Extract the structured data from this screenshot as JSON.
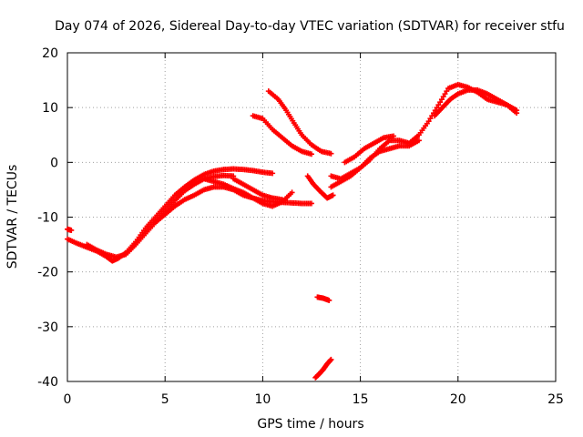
{
  "chart_data": {
    "type": "scatter",
    "title": "Day 074 of 2026, Sidereal Day-to-day VTEC variation (SDTVAR) for receiver stfu",
    "xlabel": "GPS time / hours",
    "ylabel": "SDTVAR / TECUs",
    "xlim": [
      0,
      25
    ],
    "ylim": [
      -40,
      20
    ],
    "xticks": [
      "0",
      "5",
      "10",
      "15",
      "20",
      "25"
    ],
    "yticks": [
      "20",
      "10",
      "0",
      "-10",
      "-20",
      "-30",
      "-40"
    ],
    "grid": true,
    "marker": "+",
    "color": "#ff0000",
    "series": [
      {
        "name": "track-main-1",
        "x": [
          0.0,
          0.5,
          1.0,
          1.5,
          2.0,
          2.3,
          2.6,
          3.0,
          3.5,
          4.0,
          4.5,
          5.0,
          5.5,
          6.0,
          6.5,
          7.0,
          7.5,
          8.0,
          8.5,
          9.0,
          9.5,
          10.0,
          10.5
        ],
        "y": [
          -14,
          -14.8,
          -15.5,
          -16.2,
          -17.2,
          -18,
          -17.5,
          -16.5,
          -14.5,
          -12,
          -10,
          -8,
          -6,
          -4.5,
          -3.2,
          -2.2,
          -1.6,
          -1.3,
          -1.2,
          -1.3,
          -1.5,
          -1.8,
          -2.0
        ]
      },
      {
        "name": "track-main-2",
        "x": [
          1.0,
          1.5,
          2.0,
          2.5,
          3.0,
          3.5,
          4.0,
          4.5,
          5.0,
          5.5,
          6.0,
          6.5,
          7.0,
          7.5,
          8.0,
          8.5
        ],
        "y": [
          -15,
          -16,
          -16.8,
          -17.3,
          -16.8,
          -15,
          -13,
          -11,
          -9,
          -7,
          -5.2,
          -4,
          -3,
          -2.6,
          -2.4,
          -2.5
        ]
      },
      {
        "name": "track-lower-1",
        "x": [
          4.5,
          5.0,
          5.5,
          6.0,
          6.5,
          7.0,
          7.5,
          8.0,
          8.5,
          9.0,
          9.5,
          10.0,
          10.5,
          11.0,
          11.5,
          12.0,
          12.5
        ],
        "y": [
          -11,
          -9.5,
          -8,
          -6.8,
          -6,
          -5,
          -4.5,
          -4.5,
          -5,
          -6,
          -6.5,
          -7,
          -7.2,
          -7.3,
          -7.4,
          -7.5,
          -7.5
        ]
      },
      {
        "name": "track-lower-2",
        "x": [
          7.0,
          7.5,
          8.0,
          8.5,
          9.0,
          9.5,
          10.0,
          10.5,
          11.0,
          11.5
        ],
        "y": [
          -3,
          -3.5,
          -4,
          -4.8,
          -5.5,
          -6.5,
          -7.5,
          -8,
          -7.2,
          -5.5
        ]
      },
      {
        "name": "track-lower-3",
        "x": [
          8.5,
          9.0,
          9.5,
          10.0,
          10.5,
          11.0
        ],
        "y": [
          -3,
          -4,
          -5,
          -6,
          -6.5,
          -6.8
        ]
      },
      {
        "name": "track-arc-upper",
        "x": [
          10.3,
          10.8,
          11.2,
          11.6,
          12.0,
          12.5,
          13.0,
          13.5
        ],
        "y": [
          13,
          11.5,
          9.5,
          7.2,
          5,
          3.2,
          2,
          1.6
        ]
      },
      {
        "name": "track-arc-lower",
        "x": [
          9.5,
          10.0,
          10.5,
          11.0,
          11.5,
          12.0,
          12.5
        ],
        "y": [
          8.5,
          8,
          6,
          4.5,
          3,
          2,
          1.5
        ]
      },
      {
        "name": "track-dip",
        "x": [
          12.3,
          12.6,
          13.0,
          13.3,
          13.6
        ],
        "y": [
          -2.5,
          -4,
          -5.5,
          -6.5,
          -6
        ]
      },
      {
        "name": "track-rise-1",
        "x": [
          13.5,
          14.0,
          14.5,
          15.0,
          15.5,
          16.0,
          16.5,
          17.0,
          17.5,
          18.0,
          18.5,
          19.0,
          19.5,
          20.0,
          20.5,
          21.0,
          21.5,
          22.0,
          22.5,
          23.0
        ],
        "y": [
          -2.5,
          -3,
          -2,
          -1,
          0.5,
          2.5,
          4,
          4,
          3.5,
          5,
          7.5,
          10.5,
          13.5,
          14.2,
          13.7,
          12.8,
          11.5,
          11,
          10.5,
          9.5
        ]
      },
      {
        "name": "track-rise-2",
        "x": [
          13.5,
          14.0,
          14.5,
          15.0,
          15.5,
          16.0,
          16.5,
          17.0,
          17.5,
          18.0
        ],
        "y": [
          -4.5,
          -3.5,
          -2.5,
          -1,
          0.8,
          2,
          2.5,
          3,
          3,
          4
        ]
      },
      {
        "name": "track-rise-3",
        "x": [
          14.2,
          14.7,
          15.2,
          15.7,
          16.2,
          16.7
        ],
        "y": [
          0,
          1,
          2.5,
          3.5,
          4.5,
          4.8
        ]
      },
      {
        "name": "track-rise-4",
        "x": [
          18.8,
          19.2,
          19.6,
          20.0,
          20.5,
          21.0,
          21.5,
          22.0,
          22.5,
          23.0
        ],
        "y": [
          8.5,
          10,
          11.5,
          12.5,
          13.2,
          13.2,
          12.5,
          11.5,
          10.5,
          9
        ]
      },
      {
        "name": "isolated-1",
        "x": [
          12.8,
          13.1,
          13.4
        ],
        "y": [
          -24.6,
          -24.8,
          -25.2
        ]
      },
      {
        "name": "isolated-2",
        "x": [
          12.7,
          12.9,
          13.1,
          13.3,
          13.5
        ],
        "y": [
          -39.3,
          -38.6,
          -37.8,
          -36.8,
          -36
        ]
      },
      {
        "name": "isolated-3",
        "x": [
          0.0,
          0.2
        ],
        "y": [
          -12.2,
          -12.4
        ]
      }
    ]
  }
}
